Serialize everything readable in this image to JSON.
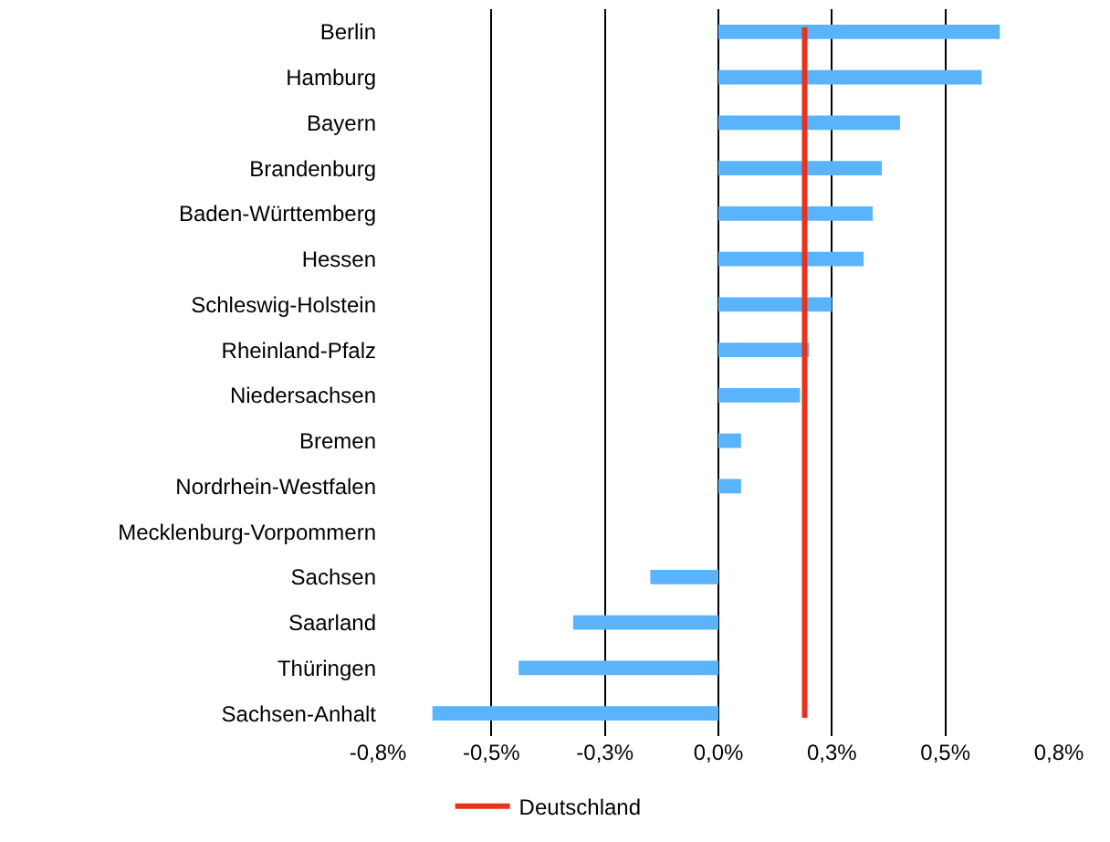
{
  "chart_data": {
    "type": "bar",
    "orientation": "horizontal",
    "categories": [
      "Berlin",
      "Hamburg",
      "Bayern",
      "Brandenburg",
      "Baden-Württemberg",
      "Hessen",
      "Schleswig-Holstein",
      "Rheinland-Pfalz",
      "Niedersachsen",
      "Bremen",
      "Nordrhein-Westfalen",
      "Mecklenburg-Vorpommern",
      "Sachsen",
      "Saarland",
      "Thüringen",
      "Sachsen-Anhalt"
    ],
    "values": [
      0.62,
      0.58,
      0.4,
      0.36,
      0.34,
      0.32,
      0.25,
      0.2,
      0.18,
      0.05,
      0.05,
      0,
      -0.15,
      -0.32,
      -0.44,
      -0.63
    ],
    "color": "#5ab4fc",
    "xlim": [
      -0.75,
      0.75
    ],
    "xticks": [
      {
        "value": -0.75,
        "label": "-0,8%"
      },
      {
        "value": -0.5,
        "label": "-0,5%"
      },
      {
        "value": -0.25,
        "label": "-0,3%"
      },
      {
        "value": 0,
        "label": "0,0%"
      },
      {
        "value": 0.25,
        "label": "0,3%"
      },
      {
        "value": 0.5,
        "label": "0,5%"
      },
      {
        "value": 0.75,
        "label": "0,8%"
      }
    ],
    "ref_lines": [
      {
        "axis": "x",
        "value": 0.19,
        "label": "Deutschland",
        "color": "#e8321e"
      }
    ],
    "grid": "x",
    "legend": "bottom"
  }
}
